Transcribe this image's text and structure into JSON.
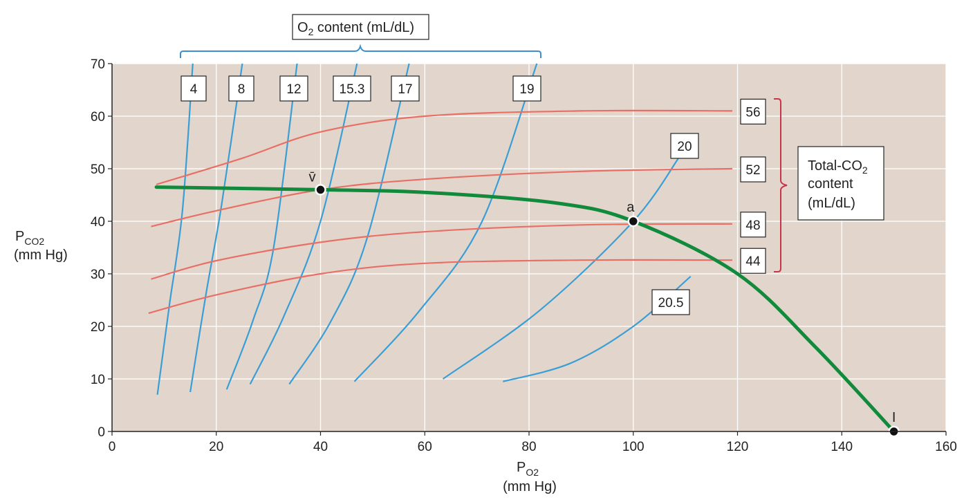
{
  "chart_data": {
    "type": "line",
    "xlim": [
      0,
      160
    ],
    "ylim": [
      0,
      70
    ],
    "grid": true,
    "x_ticks": [
      "0",
      "20",
      "40",
      "60",
      "80",
      "100",
      "120",
      "140",
      "160"
    ],
    "y_ticks": [
      "0",
      "10",
      "20",
      "30",
      "40",
      "50",
      "60",
      "70"
    ],
    "x_axis_label": {
      "main": "P",
      "sub": "O2",
      "unit": "(mm Hg)"
    },
    "y_axis_label": {
      "main": "P",
      "sub": "CO2",
      "unit": "(mm Hg)"
    },
    "o2_group_label": {
      "main": "O",
      "sub": "2",
      "rest": " content (mL/dL)"
    },
    "co2_group_label": {
      "line1": "Total-CO",
      "sub": "2",
      "line2": "content",
      "line3": "(mL/dL)"
    },
    "o2_isopleths": [
      {
        "name": "4",
        "points": [
          [
            8.7,
            7
          ],
          [
            11,
            24
          ],
          [
            13.5,
            42
          ],
          [
            15.5,
            70
          ]
        ]
      },
      {
        "name": "8",
        "points": [
          [
            15,
            7.5
          ],
          [
            18,
            26
          ],
          [
            21,
            43
          ],
          [
            25,
            70
          ]
        ]
      },
      {
        "name": "12",
        "points": [
          [
            22,
            8
          ],
          [
            27,
            21
          ],
          [
            31,
            35
          ],
          [
            35.5,
            70
          ]
        ]
      },
      {
        "name": "15.3",
        "points": [
          [
            26.5,
            9
          ],
          [
            33,
            22
          ],
          [
            40,
            40
          ],
          [
            47,
            70
          ]
        ]
      },
      {
        "name": "17",
        "points": [
          [
            34,
            9
          ],
          [
            42,
            21
          ],
          [
            49,
            37
          ],
          [
            57,
            70
          ]
        ]
      },
      {
        "name": "19",
        "points": [
          [
            46.5,
            9.5
          ],
          [
            59,
            23
          ],
          [
            71,
            40
          ],
          [
            81.5,
            70
          ]
        ]
      },
      {
        "name": "20",
        "points": [
          [
            63.5,
            10
          ],
          [
            82,
            23
          ],
          [
            100,
            40
          ],
          [
            109,
            52.5
          ]
        ]
      },
      {
        "name": "20.5",
        "points": [
          [
            75,
            9.5
          ],
          [
            88,
            13
          ],
          [
            100,
            20
          ],
          [
            111,
            29.5
          ]
        ]
      }
    ],
    "co2_isopleths": [
      {
        "name": "56",
        "points": [
          [
            8.5,
            47
          ],
          [
            25,
            52
          ],
          [
            40,
            57
          ],
          [
            60,
            60
          ],
          [
            90,
            61
          ],
          [
            119,
            61
          ]
        ]
      },
      {
        "name": "52",
        "points": [
          [
            7.5,
            39
          ],
          [
            20,
            42
          ],
          [
            40,
            46
          ],
          [
            60,
            48
          ],
          [
            90,
            49.5
          ],
          [
            119,
            50
          ]
        ]
      },
      {
        "name": "48",
        "points": [
          [
            7.5,
            29
          ],
          [
            20,
            32.5
          ],
          [
            40,
            36
          ],
          [
            60,
            38
          ],
          [
            90,
            39.3
          ],
          [
            119,
            39.5
          ]
        ]
      },
      {
        "name": "44",
        "points": [
          [
            7,
            22.5
          ],
          [
            20,
            26
          ],
          [
            40,
            30
          ],
          [
            60,
            32
          ],
          [
            90,
            32.6
          ],
          [
            119,
            32.6
          ]
        ]
      }
    ],
    "ventilation_perfusion_line": {
      "points": [
        [
          8.5,
          46.5
        ],
        [
          40,
          46
        ],
        [
          60,
          45.5
        ],
        [
          85,
          43.5
        ],
        [
          100,
          40
        ],
        [
          120,
          30
        ],
        [
          135,
          16
        ],
        [
          150,
          0
        ]
      ]
    },
    "points": [
      {
        "label": "v̄",
        "x": 40,
        "y": 46
      },
      {
        "label": "a",
        "x": 100,
        "y": 40
      },
      {
        "label": "I",
        "x": 150,
        "y": 0
      }
    ],
    "colors": {
      "plot_bg": "#e2d6cc",
      "o2_line": "#3a9ed6",
      "co2_line": "#e86f66",
      "va_q_line": "#128a3c",
      "o2_bracket": "#3a8fd0",
      "co2_bracket": "#c8344a",
      "grid": "#ffffff"
    }
  }
}
